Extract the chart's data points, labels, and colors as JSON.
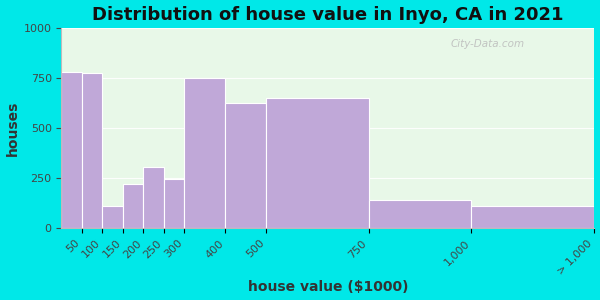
{
  "title": "Distribution of house value in Inyo, CA in 2021",
  "xlabel": "house value ($1000)",
  "ylabel": "houses",
  "bin_edges": [
    0,
    50,
    100,
    150,
    200,
    250,
    300,
    400,
    500,
    750,
    1000,
    1300
  ],
  "tick_positions": [
    50,
    100,
    150,
    200,
    250,
    300,
    400,
    500,
    750,
    1000,
    1300
  ],
  "tick_labels": [
    "50",
    "100",
    "150",
    "200",
    "250",
    "300",
    "400",
    "500",
    "750",
    "1,000",
    "> 1,000"
  ],
  "values": [
    780,
    775,
    110,
    220,
    305,
    245,
    750,
    625,
    650,
    140,
    110
  ],
  "bar_color": "#c0a8d8",
  "bar_edgecolor": "#ffffff",
  "bg_outer": "#00e8e8",
  "bg_plot": "#e8f8e8",
  "ylim": [
    0,
    1000
  ],
  "yticks": [
    0,
    250,
    500,
    750,
    1000
  ],
  "title_fontsize": 13,
  "axis_label_fontsize": 10,
  "tick_fontsize": 8,
  "watermark": "City-Data.com"
}
